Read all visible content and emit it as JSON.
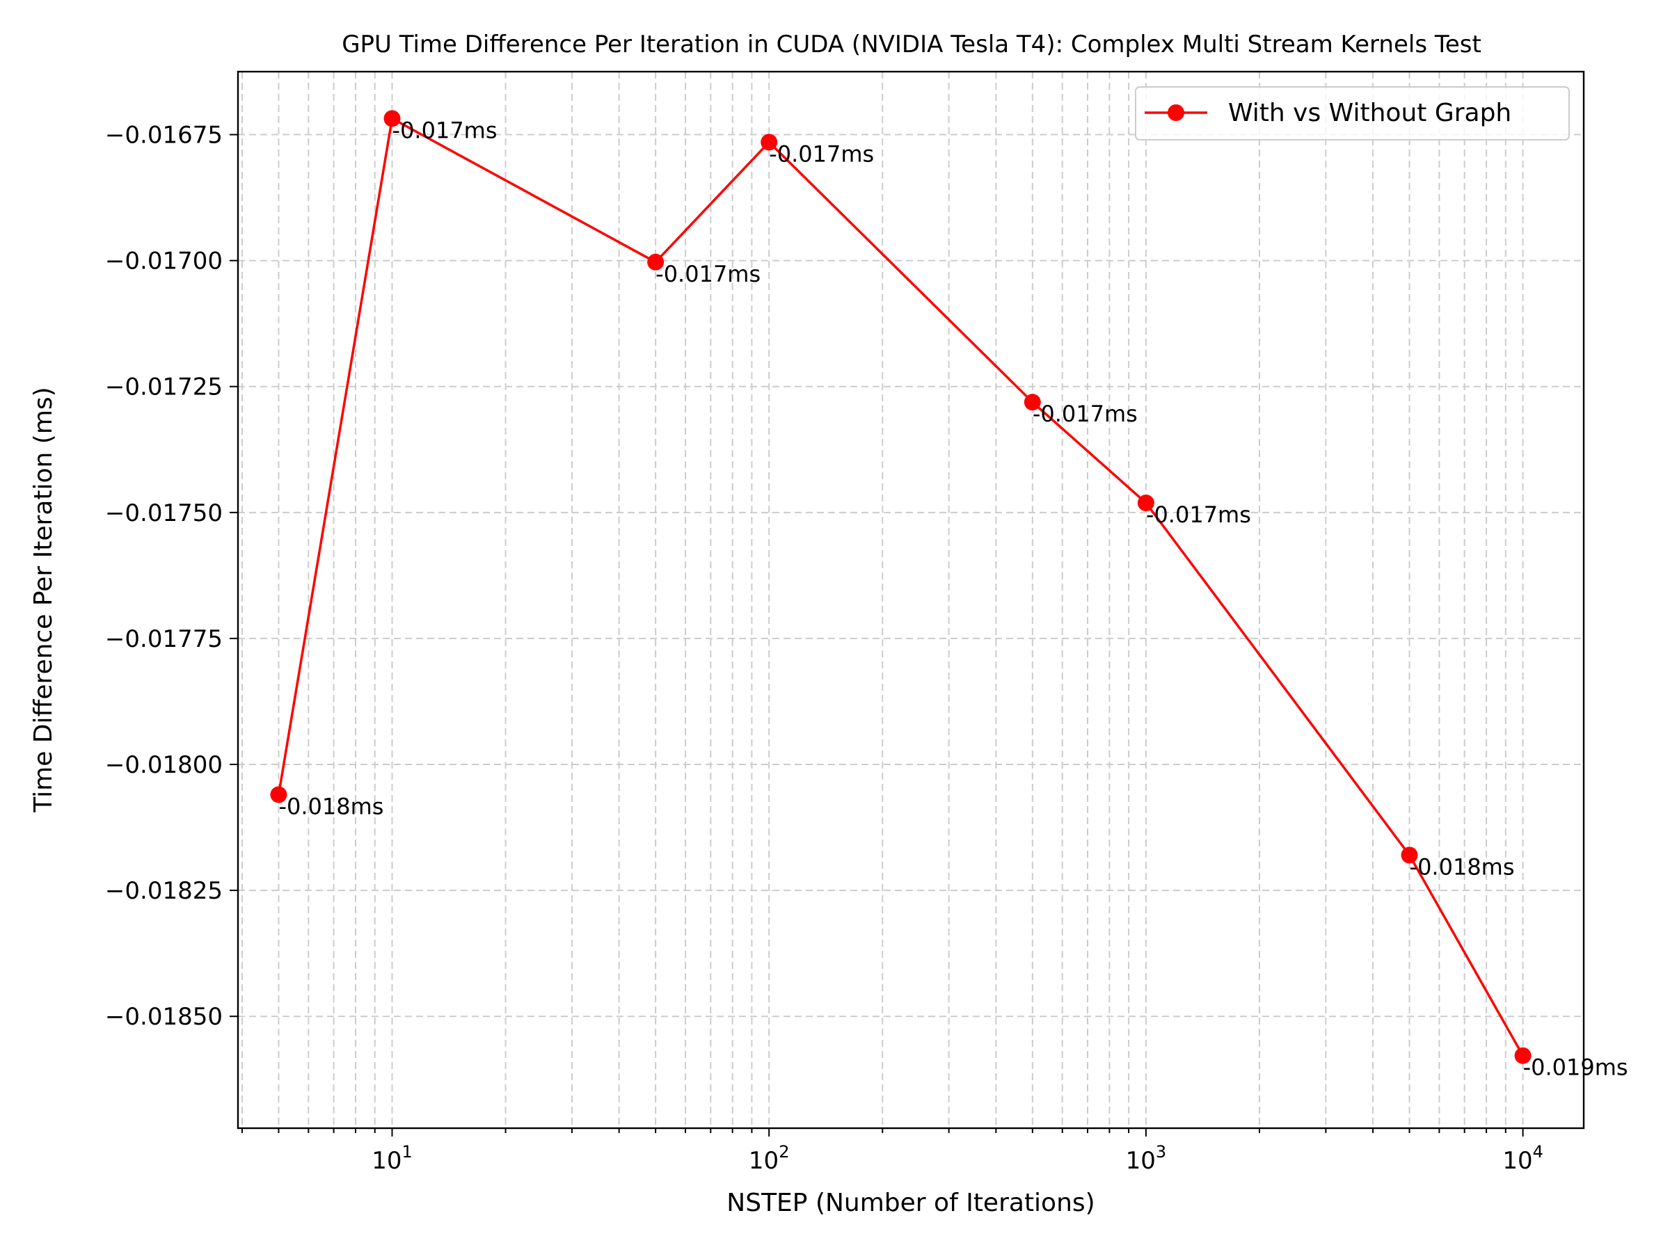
{
  "chart_data": {
    "type": "line",
    "title": "GPU Time Difference Per Iteration in CUDA (NVIDIA Tesla T4): Complex Multi Stream Kernels Test",
    "xlabel": "NSTEP (Number of Iterations)",
    "ylabel": "Time Difference Per Iteration (ms)",
    "xscale": "log",
    "xlim": [
      3.9,
      14500
    ],
    "ylim": [
      -0.018722,
      -0.016625
    ],
    "grid": true,
    "legend_position": "top-right",
    "x_ticks": [
      {
        "value": 10,
        "base": "10",
        "exp": "1"
      },
      {
        "value": 100,
        "base": "10",
        "exp": "2"
      },
      {
        "value": 1000,
        "base": "10",
        "exp": "3"
      },
      {
        "value": 10000,
        "base": "10",
        "exp": "4"
      }
    ],
    "y_ticks": [
      {
        "value": -0.01675,
        "label": "−0.01675"
      },
      {
        "value": -0.017,
        "label": "−0.01700"
      },
      {
        "value": -0.01725,
        "label": "−0.01725"
      },
      {
        "value": -0.0175,
        "label": "−0.01750"
      },
      {
        "value": -0.01775,
        "label": "−0.01775"
      },
      {
        "value": -0.018,
        "label": "−0.01800"
      },
      {
        "value": -0.01825,
        "label": "−0.01825"
      },
      {
        "value": -0.0185,
        "label": "−0.01850"
      }
    ],
    "series": [
      {
        "name": "With vs Without Graph",
        "color": "#ff0000",
        "x": [
          5,
          10,
          50,
          100,
          500,
          1000,
          5000,
          10000
        ],
        "y": [
          -0.01806,
          -0.016718,
          -0.017003,
          -0.016765,
          -0.017281,
          -0.017481,
          -0.01818,
          -0.018578
        ],
        "labels": [
          "-0.018ms",
          "-0.017ms",
          "-0.017ms",
          "-0.017ms",
          "-0.017ms",
          "-0.017ms",
          "-0.018ms",
          "-0.019ms"
        ]
      }
    ]
  }
}
